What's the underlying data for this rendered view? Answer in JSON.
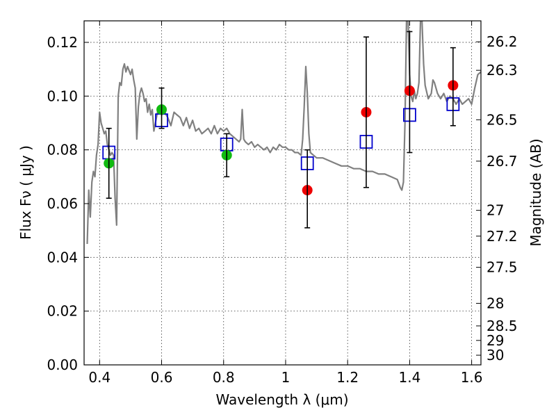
{
  "chart_data": {
    "type": "scatter",
    "title": "",
    "xlabel": "Wavelength  λ (μm)",
    "ylabel": "Flux  Fν  ( μJy )",
    "ylabel_right": "Magnitude (AB)",
    "xlim": [
      0.35,
      1.63
    ],
    "ylim": [
      0.0,
      0.128
    ],
    "x_ticks": [
      0.4,
      0.6,
      0.8,
      1.0,
      1.2,
      1.4,
      1.6
    ],
    "x_tick_labels": [
      "0.4",
      "0.6",
      "0.8",
      "1",
      "1.2",
      "1.4",
      "1.6"
    ],
    "y_ticks": [
      0.0,
      0.02,
      0.04,
      0.06,
      0.08,
      0.1,
      0.12
    ],
    "y_tick_labels": [
      "0.00",
      "0.02",
      "0.04",
      "0.06",
      "0.08",
      "0.10",
      "0.12"
    ],
    "right_ticks": [
      {
        "label": "26.2",
        "flux": 0.1202
      },
      {
        "label": "26.3",
        "flux": 0.1096
      },
      {
        "label": "26.5",
        "flux": 0.0912
      },
      {
        "label": "26.7",
        "flux": 0.0758
      },
      {
        "label": "27",
        "flux": 0.0575
      },
      {
        "label": "27.2",
        "flux": 0.0479
      },
      {
        "label": "27.5",
        "flux": 0.0363
      },
      {
        "label": "28",
        "flux": 0.0229
      },
      {
        "label": "28.5",
        "flux": 0.0145
      },
      {
        "label": "29",
        "flux": 0.0091
      },
      {
        "label": "30",
        "flux": 0.0036
      }
    ],
    "grid": true,
    "series": [
      {
        "type": "line",
        "color": "#808080",
        "points": [
          [
            0.36,
            0.045
          ],
          [
            0.365,
            0.065
          ],
          [
            0.37,
            0.055
          ],
          [
            0.375,
            0.068
          ],
          [
            0.38,
            0.072
          ],
          [
            0.385,
            0.07
          ],
          [
            0.39,
            0.078
          ],
          [
            0.395,
            0.082
          ],
          [
            0.4,
            0.094
          ],
          [
            0.405,
            0.09
          ],
          [
            0.41,
            0.088
          ],
          [
            0.415,
            0.086
          ],
          [
            0.42,
            0.087
          ],
          [
            0.425,
            0.082
          ],
          [
            0.43,
            0.08
          ],
          [
            0.435,
            0.078
          ],
          [
            0.44,
            0.079
          ],
          [
            0.445,
            0.078
          ],
          [
            0.45,
            0.062
          ],
          [
            0.455,
            0.052
          ],
          [
            0.46,
            0.1
          ],
          [
            0.465,
            0.105
          ],
          [
            0.47,
            0.104
          ],
          [
            0.475,
            0.11
          ],
          [
            0.48,
            0.112
          ],
          [
            0.485,
            0.109
          ],
          [
            0.49,
            0.111
          ],
          [
            0.5,
            0.108
          ],
          [
            0.505,
            0.11
          ],
          [
            0.51,
            0.106
          ],
          [
            0.515,
            0.103
          ],
          [
            0.52,
            0.084
          ],
          [
            0.525,
            0.096
          ],
          [
            0.53,
            0.101
          ],
          [
            0.535,
            0.103
          ],
          [
            0.54,
            0.101
          ],
          [
            0.545,
            0.098
          ],
          [
            0.55,
            0.099
          ],
          [
            0.555,
            0.094
          ],
          [
            0.56,
            0.097
          ],
          [
            0.565,
            0.093
          ],
          [
            0.57,
            0.095
          ],
          [
            0.575,
            0.087
          ],
          [
            0.58,
            0.09
          ],
          [
            0.585,
            0.093
          ],
          [
            0.59,
            0.096
          ],
          [
            0.6,
            0.093
          ],
          [
            0.61,
            0.094
          ],
          [
            0.62,
            0.092
          ],
          [
            0.63,
            0.089
          ],
          [
            0.64,
            0.094
          ],
          [
            0.65,
            0.093
          ],
          [
            0.66,
            0.092
          ],
          [
            0.67,
            0.089
          ],
          [
            0.68,
            0.092
          ],
          [
            0.69,
            0.088
          ],
          [
            0.7,
            0.091
          ],
          [
            0.71,
            0.087
          ],
          [
            0.72,
            0.088
          ],
          [
            0.73,
            0.086
          ],
          [
            0.74,
            0.087
          ],
          [
            0.75,
            0.088
          ],
          [
            0.76,
            0.086
          ],
          [
            0.77,
            0.089
          ],
          [
            0.78,
            0.086
          ],
          [
            0.79,
            0.088
          ],
          [
            0.8,
            0.087
          ],
          [
            0.81,
            0.088
          ],
          [
            0.82,
            0.086
          ],
          [
            0.83,
            0.085
          ],
          [
            0.84,
            0.084
          ],
          [
            0.85,
            0.083
          ],
          [
            0.855,
            0.084
          ],
          [
            0.86,
            0.095
          ],
          [
            0.865,
            0.084
          ],
          [
            0.87,
            0.083
          ],
          [
            0.88,
            0.082
          ],
          [
            0.89,
            0.083
          ],
          [
            0.9,
            0.081
          ],
          [
            0.91,
            0.082
          ],
          [
            0.92,
            0.081
          ],
          [
            0.93,
            0.08
          ],
          [
            0.94,
            0.081
          ],
          [
            0.95,
            0.079
          ],
          [
            0.96,
            0.081
          ],
          [
            0.97,
            0.08
          ],
          [
            0.98,
            0.082
          ],
          [
            0.99,
            0.081
          ],
          [
            1.0,
            0.081
          ],
          [
            1.01,
            0.08
          ],
          [
            1.02,
            0.08
          ],
          [
            1.03,
            0.079
          ],
          [
            1.04,
            0.079
          ],
          [
            1.05,
            0.078
          ],
          [
            1.055,
            0.084
          ],
          [
            1.06,
            0.096
          ],
          [
            1.065,
            0.111
          ],
          [
            1.07,
            0.101
          ],
          [
            1.075,
            0.086
          ],
          [
            1.08,
            0.079
          ],
          [
            1.09,
            0.078
          ],
          [
            1.1,
            0.077
          ],
          [
            1.12,
            0.077
          ],
          [
            1.14,
            0.076
          ],
          [
            1.16,
            0.075
          ],
          [
            1.18,
            0.074
          ],
          [
            1.2,
            0.074
          ],
          [
            1.22,
            0.073
          ],
          [
            1.24,
            0.073
          ],
          [
            1.26,
            0.072
          ],
          [
            1.28,
            0.072
          ],
          [
            1.3,
            0.071
          ],
          [
            1.32,
            0.071
          ],
          [
            1.34,
            0.07
          ],
          [
            1.36,
            0.069
          ],
          [
            1.37,
            0.066
          ],
          [
            1.375,
            0.065
          ],
          [
            1.38,
            0.068
          ],
          [
            1.385,
            0.09
          ],
          [
            1.39,
            0.128
          ],
          [
            1.395,
            0.128
          ],
          [
            1.4,
            0.108
          ],
          [
            1.405,
            0.1
          ],
          [
            1.41,
            0.098
          ],
          [
            1.415,
            0.102
          ],
          [
            1.42,
            0.099
          ],
          [
            1.425,
            0.101
          ],
          [
            1.43,
            0.105
          ],
          [
            1.435,
            0.128
          ],
          [
            1.44,
            0.128
          ],
          [
            1.445,
            0.112
          ],
          [
            1.45,
            0.104
          ],
          [
            1.46,
            0.099
          ],
          [
            1.47,
            0.101
          ],
          [
            1.475,
            0.106
          ],
          [
            1.48,
            0.105
          ],
          [
            1.49,
            0.101
          ],
          [
            1.5,
            0.099
          ],
          [
            1.51,
            0.101
          ],
          [
            1.52,
            0.098
          ],
          [
            1.53,
            0.1
          ],
          [
            1.54,
            0.099
          ],
          [
            1.55,
            0.097
          ],
          [
            1.56,
            0.099
          ],
          [
            1.57,
            0.097
          ],
          [
            1.58,
            0.098
          ],
          [
            1.59,
            0.099
          ],
          [
            1.6,
            0.097
          ],
          [
            1.61,
            0.103
          ],
          [
            1.62,
            0.108
          ],
          [
            1.63,
            0.109
          ]
        ]
      },
      {
        "type": "scatter",
        "marker": "square-open",
        "color": "#0000cc",
        "points": [
          [
            0.43,
            0.079
          ],
          [
            0.6,
            0.091
          ],
          [
            0.81,
            0.082
          ],
          [
            1.07,
            0.075
          ],
          [
            1.26,
            0.083
          ],
          [
            1.4,
            0.093
          ],
          [
            1.54,
            0.097
          ]
        ]
      },
      {
        "type": "scatter",
        "marker": "circle",
        "color": "#11bb11",
        "points": [
          [
            0.43,
            0.075
          ],
          [
            0.6,
            0.095
          ],
          [
            0.81,
            0.078
          ]
        ]
      },
      {
        "type": "scatter",
        "marker": "circle",
        "color": "#ee0000",
        "points": [
          [
            1.07,
            0.065
          ],
          [
            1.26,
            0.094
          ],
          [
            1.4,
            0.102
          ],
          [
            1.54,
            0.104
          ]
        ]
      },
      {
        "type": "errorbar",
        "color": "#000000",
        "bars": [
          {
            "x": 0.43,
            "low": 0.062,
            "high": 0.088
          },
          {
            "x": 0.6,
            "low": 0.088,
            "high": 0.103
          },
          {
            "x": 0.81,
            "low": 0.07,
            "high": 0.086
          },
          {
            "x": 1.07,
            "low": 0.051,
            "high": 0.08
          },
          {
            "x": 1.26,
            "low": 0.066,
            "high": 0.122
          },
          {
            "x": 1.4,
            "low": 0.079,
            "high": 0.124
          },
          {
            "x": 1.54,
            "low": 0.089,
            "high": 0.118
          }
        ]
      }
    ]
  }
}
